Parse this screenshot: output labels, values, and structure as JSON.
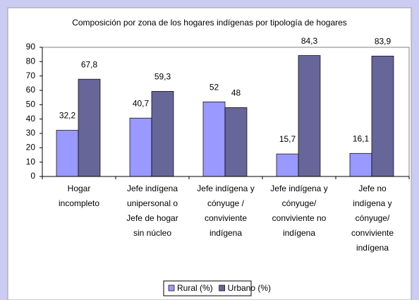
{
  "chart_data": {
    "type": "bar",
    "title": "Composición por zona de los hogares indígenas por tipología de hogares",
    "categories": [
      "Hogar\nincompleto",
      "Jefe indígena\nunipersonal o\nJefe de hogar\nsin núcleo",
      "Jefe indígena y\ncónyuge /\nconviviente\nindígena",
      "Jefe indígena y\ncónyuge/\nconviviente no\nindígena",
      "Jefe no\nindígena y\ncónyuge/\nconviviente\nindígena"
    ],
    "series": [
      {
        "name": "Rural (%)",
        "color": "#9999ff",
        "values": [
          32.2,
          40.7,
          52,
          15.7,
          16.1
        ],
        "value_labels": [
          "32,2",
          "40,7",
          "52",
          "15,7",
          "16,1"
        ]
      },
      {
        "name": "Urbano (%)",
        "color": "#666699",
        "values": [
          67.8,
          59.3,
          48,
          84.3,
          83.9
        ],
        "value_labels": [
          "67,8",
          "59,3",
          "48",
          "84,3",
          "83,9"
        ]
      }
    ],
    "ylim": [
      0,
      90
    ],
    "yticks": [
      0,
      10,
      20,
      30,
      40,
      50,
      60,
      70,
      80,
      90
    ],
    "grid": false
  }
}
